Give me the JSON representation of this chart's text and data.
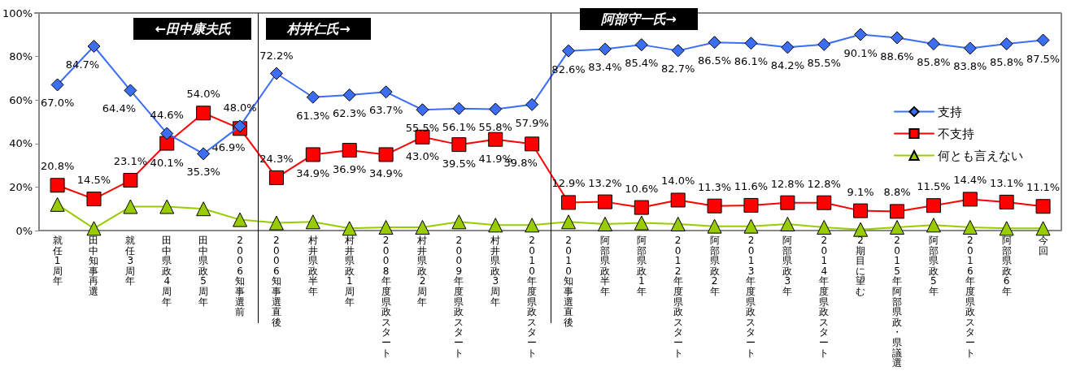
{
  "chart_data": {
    "type": "line",
    "categories": [
      "就任1周年",
      "田中知事再選",
      "就任3周年",
      "田中県政4周年",
      "田中県政5周年",
      "2006知事選前",
      "2006知事選直後",
      "村井県政半年",
      "村井県政1周年",
      "2008年度県政スタート",
      "村井県政2周年",
      "2009年度県政スタート",
      "村井県政3周年",
      "2010年度県政スタート",
      "2010知事選直後",
      "阿部県政半年",
      "阿部県政1年",
      "2012年度県政スタート",
      "阿部県政2年",
      "2013年度県政スタート",
      "阿部県政3年",
      "2014年度県政スタート",
      "2期目に望む",
      "2015年阿部県政・県議選",
      "阿部県政5年",
      "2016年度県政スタート",
      "阿部県政6年",
      "今回"
    ],
    "series": [
      {
        "name": "支持",
        "color": "#3b6ef5",
        "marker": "diamond",
        "values": [
          67.0,
          84.7,
          64.4,
          44.6,
          35.3,
          48.0,
          72.2,
          61.3,
          62.3,
          63.7,
          55.5,
          56.1,
          55.8,
          57.9,
          82.6,
          83.4,
          85.4,
          82.7,
          86.5,
          86.1,
          84.2,
          85.5,
          90.1,
          88.6,
          85.8,
          83.8,
          85.8,
          87.5
        ],
        "value_labels": [
          "67.0%",
          "84.7%",
          "64.4%",
          "44.6%",
          "35.3%",
          "48.0%",
          "72.2%",
          "61.3%",
          "62.3%",
          "63.7%",
          "55.5%",
          "56.1%",
          "55.8%",
          "57.9%",
          "82.6%",
          "83.4%",
          "85.4%",
          "82.7%",
          "86.5%",
          "86.1%",
          "84.2%",
          "85.5%",
          "90.1%",
          "88.6%",
          "85.8%",
          "83.8%",
          "85.8%",
          "87.5%"
        ]
      },
      {
        "name": "不支持",
        "color": "#ff0000",
        "marker": "square",
        "values": [
          20.8,
          14.5,
          23.1,
          40.1,
          54.0,
          46.9,
          24.3,
          34.9,
          36.9,
          34.9,
          43.0,
          39.5,
          41.9,
          39.8,
          12.9,
          13.2,
          10.6,
          14.0,
          11.3,
          11.6,
          12.8,
          12.8,
          9.1,
          8.8,
          11.5,
          14.4,
          13.1,
          11.1
        ],
        "value_labels": [
          "20.8%",
          "14.5%",
          "23.1%",
          "40.1%",
          "54.0%",
          "46.9%",
          "24.3%",
          "34.9%",
          "36.9%",
          "34.9%",
          "43.0%",
          "39.5%",
          "41.9%",
          "39.8%",
          "12.9%",
          "13.2%",
          "10.6%",
          "14.0%",
          "11.3%",
          "11.6%",
          "12.8%",
          "12.8%",
          "9.1%",
          "8.8%",
          "11.5%",
          "14.4%",
          "13.1%",
          "11.1%"
        ]
      },
      {
        "name": "何とも言えない",
        "color": "#99cc00",
        "marker": "triangle",
        "values": [
          12,
          1,
          11,
          11,
          10,
          5,
          3.5,
          4,
          1,
          1.5,
          1.5,
          4,
          2.5,
          2.5,
          4,
          3,
          3.5,
          3,
          2,
          2,
          3,
          1.5,
          0.5,
          1.5,
          2.5,
          1.5,
          1,
          1
        ]
      }
    ],
    "ylim": [
      0,
      100
    ],
    "yticks": [
      {
        "value": 0,
        "label": "0%"
      },
      {
        "value": 20,
        "label": "20%"
      },
      {
        "value": 40,
        "label": "40%"
      },
      {
        "value": 60,
        "label": "60%"
      },
      {
        "value": 80,
        "label": "80%"
      },
      {
        "value": 100,
        "label": "100%"
      }
    ],
    "annotations": [
      "←田中康夫氏",
      "村井仁氏→",
      "阿部守一氏→"
    ],
    "legend": "right",
    "line_style": "solid"
  }
}
